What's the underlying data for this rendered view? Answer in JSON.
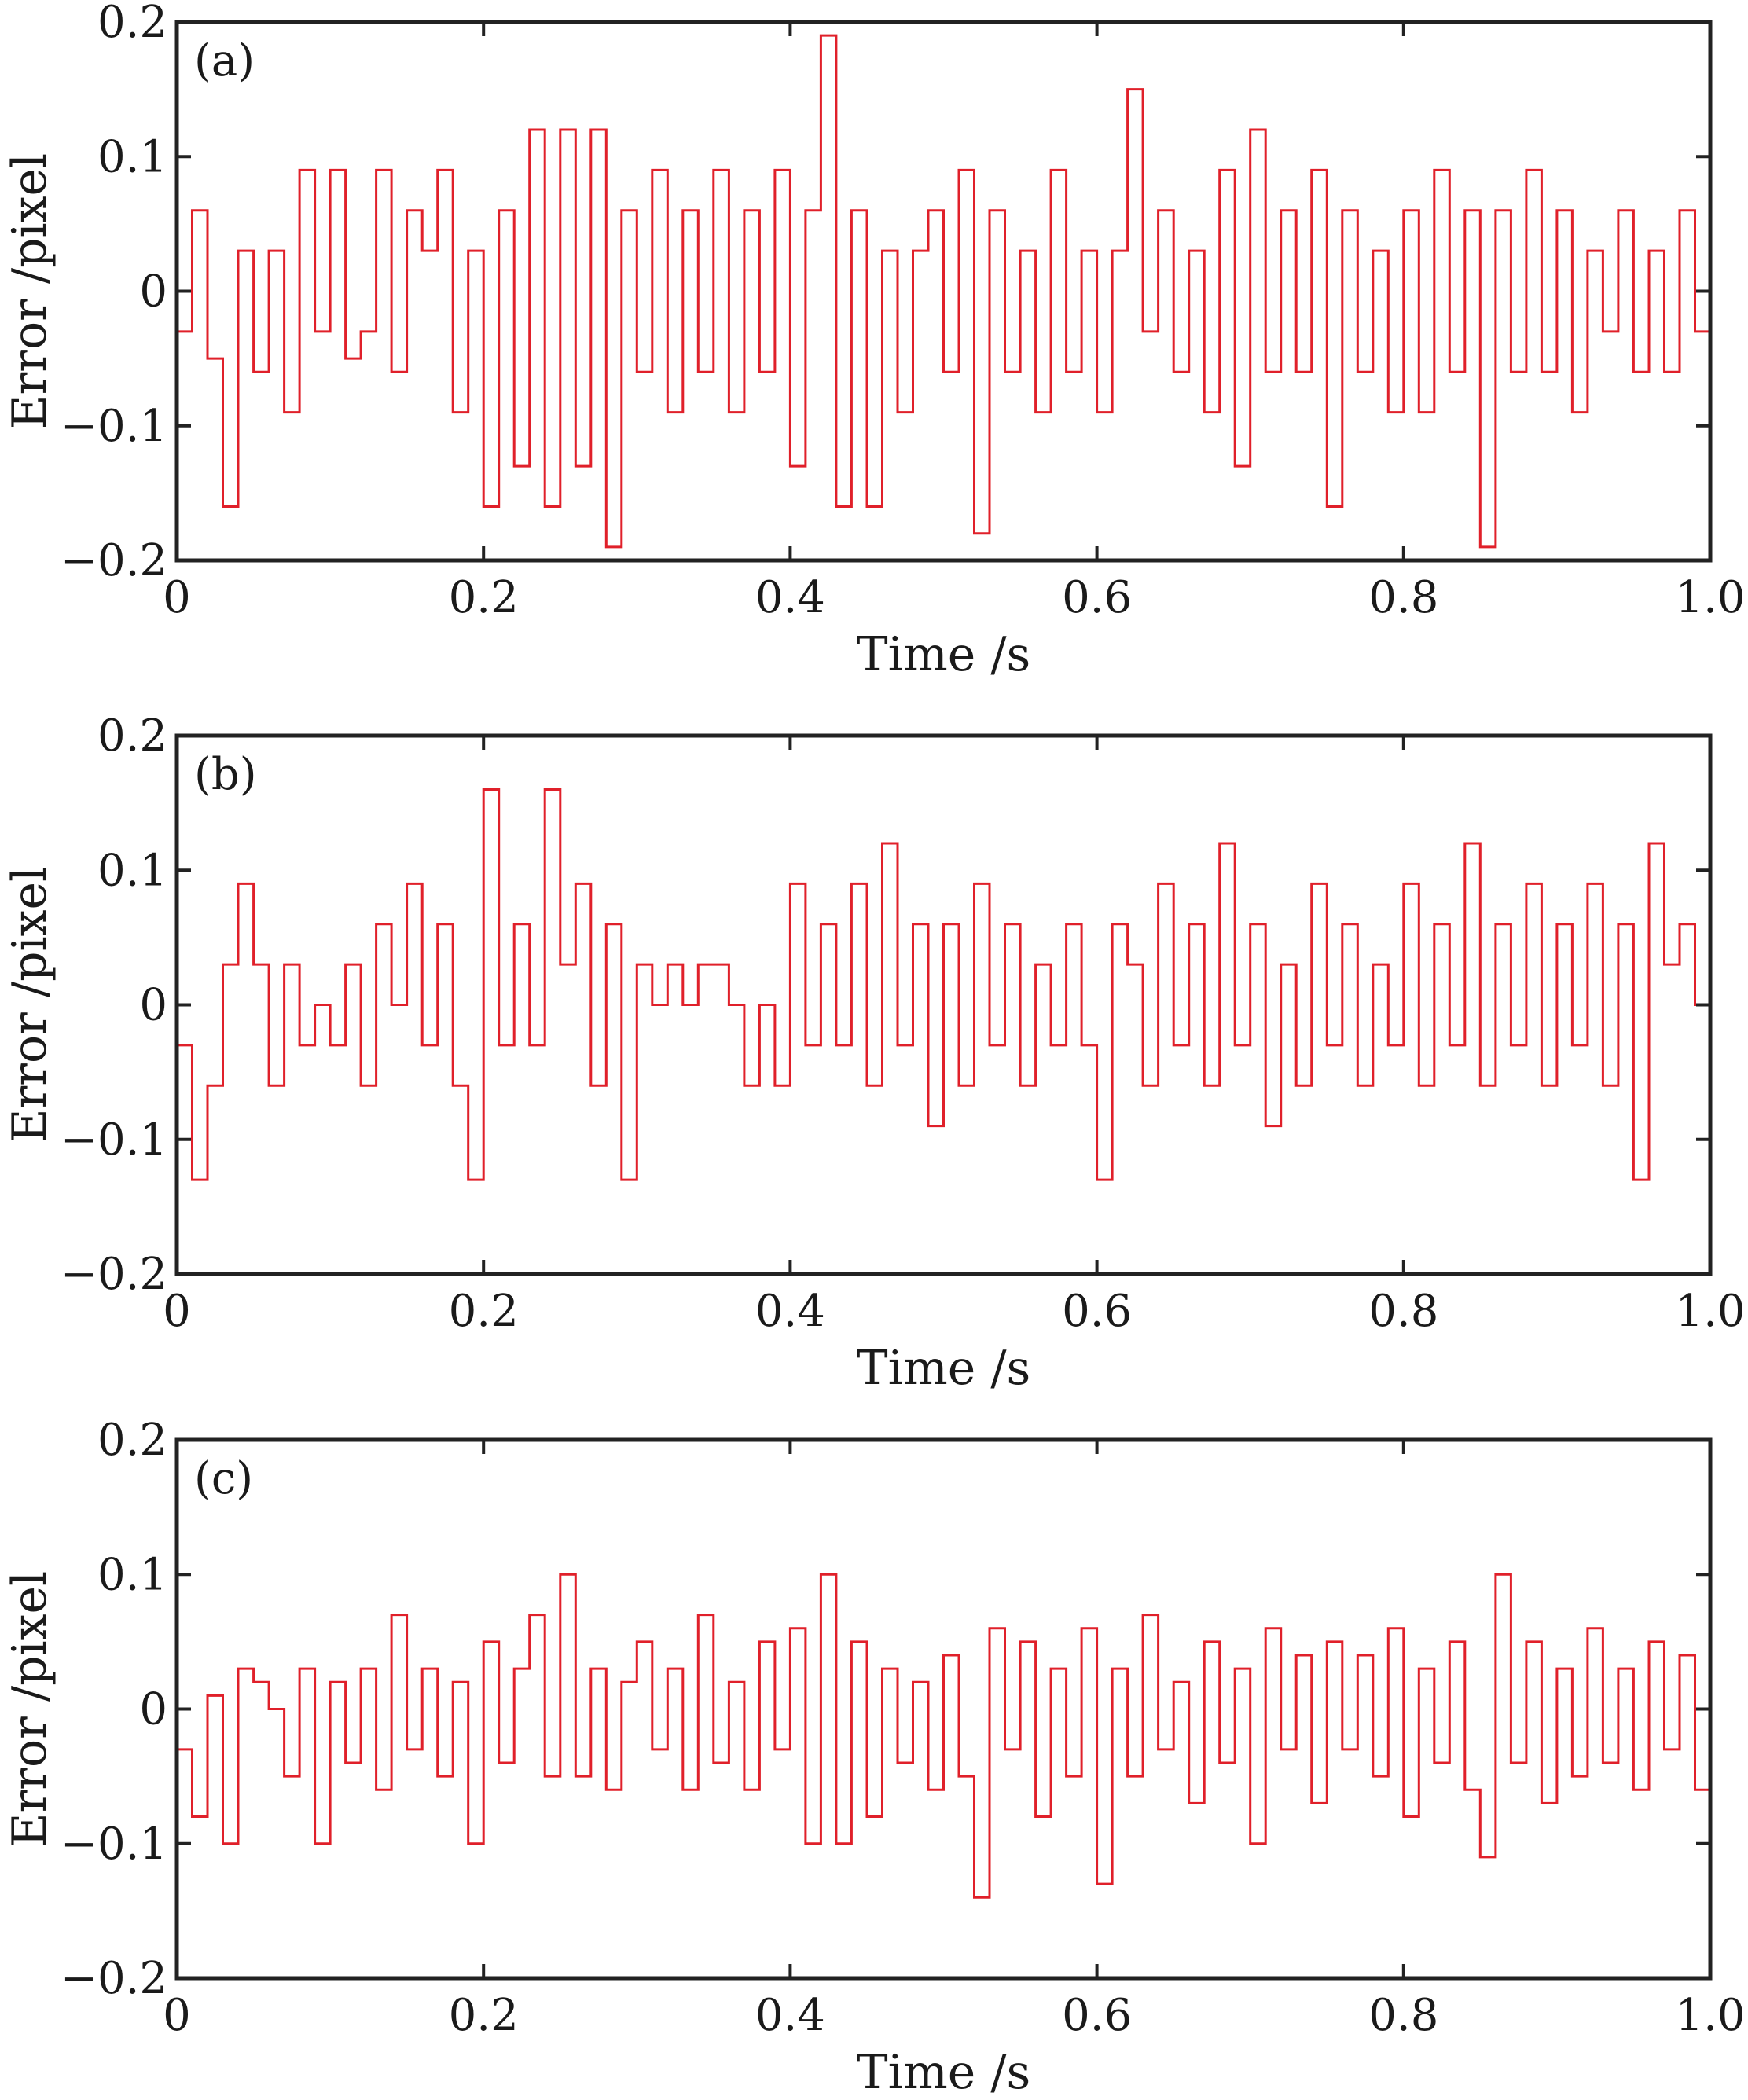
{
  "colors": {
    "series": "#e0202a",
    "axis": "#222222"
  },
  "chart_data": [
    {
      "type": "line",
      "panel_label": "(a)",
      "xlabel": "Time /s",
      "ylabel": "Error /pixel",
      "xlim": [
        0,
        1.0
      ],
      "ylim": [
        -0.2,
        0.2
      ],
      "xticks": [
        "0",
        "0.2",
        "0.4",
        "0.6",
        "0.8",
        "1.0"
      ],
      "yticks": [
        "0.2",
        "0.1",
        "0",
        "−0.1",
        "−0.2"
      ],
      "grid": false,
      "series": [
        {
          "x": [
            0.0,
            0.01,
            0.02,
            0.03,
            0.04,
            0.05,
            0.06,
            0.07,
            0.08,
            0.09,
            0.1,
            0.11,
            0.12,
            0.13,
            0.14,
            0.15,
            0.16,
            0.17,
            0.18,
            0.19,
            0.2,
            0.21,
            0.22,
            0.23,
            0.24,
            0.25,
            0.26,
            0.27,
            0.28,
            0.29,
            0.3,
            0.31,
            0.32,
            0.33,
            0.34,
            0.35,
            0.36,
            0.37,
            0.38,
            0.39,
            0.4,
            0.41,
            0.42,
            0.43,
            0.44,
            0.45,
            0.46,
            0.47,
            0.48,
            0.49,
            0.5,
            0.51,
            0.52,
            0.53,
            0.54,
            0.55,
            0.56,
            0.57,
            0.58,
            0.59,
            0.6,
            0.61,
            0.62,
            0.63,
            0.64,
            0.65,
            0.66,
            0.67,
            0.68,
            0.69,
            0.7,
            0.71,
            0.72,
            0.73,
            0.74,
            0.75,
            0.76,
            0.77,
            0.78,
            0.79,
            0.8,
            0.81,
            0.82,
            0.83,
            0.84,
            0.85,
            0.86,
            0.87,
            0.88,
            0.89,
            0.9,
            0.91,
            0.92,
            0.93,
            0.94,
            0.95,
            0.96,
            0.97,
            0.98,
            0.99,
            1.0
          ],
          "y": [
            -0.03,
            0.06,
            -0.05,
            -0.16,
            0.03,
            -0.06,
            0.03,
            -0.09,
            0.09,
            -0.03,
            0.09,
            -0.05,
            -0.03,
            0.09,
            -0.06,
            0.06,
            0.03,
            0.09,
            -0.09,
            0.03,
            -0.16,
            0.06,
            -0.13,
            0.12,
            -0.16,
            0.12,
            -0.13,
            0.12,
            -0.19,
            0.06,
            -0.06,
            0.09,
            -0.09,
            0.06,
            -0.06,
            0.09,
            -0.09,
            0.06,
            -0.06,
            0.09,
            -0.13,
            0.06,
            0.19,
            -0.16,
            0.06,
            -0.16,
            0.03,
            -0.09,
            0.03,
            0.06,
            -0.06,
            0.09,
            -0.18,
            0.06,
            -0.06,
            0.03,
            -0.09,
            0.09,
            -0.06,
            0.03,
            -0.09,
            0.03,
            0.15,
            -0.03,
            0.06,
            -0.06,
            0.03,
            -0.09,
            0.09,
            -0.13,
            0.12,
            -0.06,
            0.06,
            -0.06,
            0.09,
            -0.16,
            0.06,
            -0.06,
            0.03,
            -0.09,
            0.06,
            -0.09,
            0.09,
            -0.06,
            0.06,
            -0.19,
            0.06,
            -0.06,
            0.09,
            -0.06,
            0.06,
            -0.09,
            0.03,
            -0.03,
            0.06,
            -0.06,
            0.03,
            -0.06,
            0.06,
            -0.03,
            0.03
          ]
        }
      ]
    },
    {
      "type": "line",
      "panel_label": "(b)",
      "xlabel": "Time /s",
      "ylabel": "Error /pixel",
      "xlim": [
        0,
        1.0
      ],
      "ylim": [
        -0.2,
        0.2
      ],
      "xticks": [
        "0",
        "0.2",
        "0.4",
        "0.6",
        "0.8",
        "1.0"
      ],
      "yticks": [
        "0.2",
        "0.1",
        "0",
        "−0.1",
        "−0.2"
      ],
      "grid": false,
      "series": [
        {
          "x": [
            0.0,
            0.01,
            0.02,
            0.03,
            0.04,
            0.05,
            0.06,
            0.07,
            0.08,
            0.09,
            0.1,
            0.11,
            0.12,
            0.13,
            0.14,
            0.15,
            0.16,
            0.17,
            0.18,
            0.19,
            0.2,
            0.21,
            0.22,
            0.23,
            0.24,
            0.25,
            0.26,
            0.27,
            0.28,
            0.29,
            0.3,
            0.31,
            0.32,
            0.33,
            0.34,
            0.35,
            0.36,
            0.37,
            0.38,
            0.39,
            0.4,
            0.41,
            0.42,
            0.43,
            0.44,
            0.45,
            0.46,
            0.47,
            0.48,
            0.49,
            0.5,
            0.51,
            0.52,
            0.53,
            0.54,
            0.55,
            0.56,
            0.57,
            0.58,
            0.59,
            0.6,
            0.61,
            0.62,
            0.63,
            0.64,
            0.65,
            0.66,
            0.67,
            0.68,
            0.69,
            0.7,
            0.71,
            0.72,
            0.73,
            0.74,
            0.75,
            0.76,
            0.77,
            0.78,
            0.79,
            0.8,
            0.81,
            0.82,
            0.83,
            0.84,
            0.85,
            0.86,
            0.87,
            0.88,
            0.89,
            0.9,
            0.91,
            0.92,
            0.93,
            0.94,
            0.95,
            0.96,
            0.97,
            0.98,
            0.99,
            1.0
          ],
          "y": [
            -0.03,
            -0.13,
            -0.06,
            0.03,
            0.09,
            0.03,
            -0.06,
            0.03,
            -0.03,
            0.0,
            -0.03,
            0.03,
            -0.06,
            0.06,
            0.0,
            0.09,
            -0.03,
            0.06,
            -0.06,
            -0.13,
            0.16,
            -0.03,
            0.06,
            -0.03,
            0.16,
            0.03,
            0.09,
            -0.06,
            0.06,
            -0.13,
            0.03,
            0.0,
            0.03,
            0.0,
            0.03,
            0.03,
            0.0,
            -0.06,
            0.0,
            -0.06,
            0.09,
            -0.03,
            0.06,
            -0.03,
            0.09,
            -0.06,
            0.12,
            -0.03,
            0.06,
            -0.09,
            0.06,
            -0.06,
            0.09,
            -0.03,
            0.06,
            -0.06,
            0.03,
            -0.03,
            0.06,
            -0.03,
            -0.13,
            0.06,
            0.03,
            -0.06,
            0.09,
            -0.03,
            0.06,
            -0.06,
            0.12,
            -0.03,
            0.06,
            -0.09,
            0.03,
            -0.06,
            0.09,
            -0.03,
            0.06,
            -0.06,
            0.03,
            -0.03,
            0.09,
            -0.06,
            0.06,
            -0.03,
            0.12,
            -0.06,
            0.06,
            -0.03,
            0.09,
            -0.06,
            0.06,
            -0.03,
            0.09,
            -0.06,
            0.06,
            -0.13,
            0.12,
            0.03,
            0.06,
            0.0,
            0.12
          ]
        }
      ]
    },
    {
      "type": "line",
      "panel_label": "(c)",
      "xlabel": "Time /s",
      "ylabel": "Error /pixel",
      "xlim": [
        0,
        1.0
      ],
      "ylim": [
        -0.2,
        0.2
      ],
      "xticks": [
        "0",
        "0.2",
        "0.4",
        "0.6",
        "0.8",
        "1.0"
      ],
      "yticks": [
        "0.2",
        "0.1",
        "0",
        "−0.1",
        "−0.2"
      ],
      "grid": false,
      "series": [
        {
          "x": [
            0.0,
            0.01,
            0.02,
            0.03,
            0.04,
            0.05,
            0.06,
            0.07,
            0.08,
            0.09,
            0.1,
            0.11,
            0.12,
            0.13,
            0.14,
            0.15,
            0.16,
            0.17,
            0.18,
            0.19,
            0.2,
            0.21,
            0.22,
            0.23,
            0.24,
            0.25,
            0.26,
            0.27,
            0.28,
            0.29,
            0.3,
            0.31,
            0.32,
            0.33,
            0.34,
            0.35,
            0.36,
            0.37,
            0.38,
            0.39,
            0.4,
            0.41,
            0.42,
            0.43,
            0.44,
            0.45,
            0.46,
            0.47,
            0.48,
            0.49,
            0.5,
            0.51,
            0.52,
            0.53,
            0.54,
            0.55,
            0.56,
            0.57,
            0.58,
            0.59,
            0.6,
            0.61,
            0.62,
            0.63,
            0.64,
            0.65,
            0.66,
            0.67,
            0.68,
            0.69,
            0.7,
            0.71,
            0.72,
            0.73,
            0.74,
            0.75,
            0.76,
            0.77,
            0.78,
            0.79,
            0.8,
            0.81,
            0.82,
            0.83,
            0.84,
            0.85,
            0.86,
            0.87,
            0.88,
            0.89,
            0.9,
            0.91,
            0.92,
            0.93,
            0.94,
            0.95,
            0.96,
            0.97,
            0.98,
            0.99,
            1.0
          ],
          "y": [
            -0.03,
            -0.08,
            0.01,
            -0.1,
            0.03,
            0.02,
            0.0,
            -0.05,
            0.03,
            -0.1,
            0.02,
            -0.04,
            0.03,
            -0.06,
            0.07,
            -0.03,
            0.03,
            -0.05,
            0.02,
            -0.1,
            0.05,
            -0.04,
            0.03,
            0.07,
            -0.05,
            0.1,
            -0.05,
            0.03,
            -0.06,
            0.02,
            0.05,
            -0.03,
            0.03,
            -0.06,
            0.07,
            -0.04,
            0.02,
            -0.06,
            0.05,
            -0.03,
            0.06,
            -0.1,
            0.1,
            -0.1,
            0.05,
            -0.08,
            0.03,
            -0.04,
            0.02,
            -0.06,
            0.04,
            -0.05,
            -0.14,
            0.06,
            -0.03,
            0.05,
            -0.08,
            0.03,
            -0.05,
            0.06,
            -0.13,
            0.03,
            -0.05,
            0.07,
            -0.03,
            0.02,
            -0.07,
            0.05,
            -0.04,
            0.03,
            -0.1,
            0.06,
            -0.03,
            0.04,
            -0.07,
            0.05,
            -0.03,
            0.04,
            -0.05,
            0.06,
            -0.08,
            0.03,
            -0.04,
            0.05,
            -0.06,
            -0.11,
            0.1,
            -0.04,
            0.05,
            -0.07,
            0.03,
            -0.05,
            0.06,
            -0.04,
            0.03,
            -0.06,
            0.05,
            -0.03,
            0.04,
            -0.06,
            0.03
          ]
        }
      ]
    }
  ]
}
